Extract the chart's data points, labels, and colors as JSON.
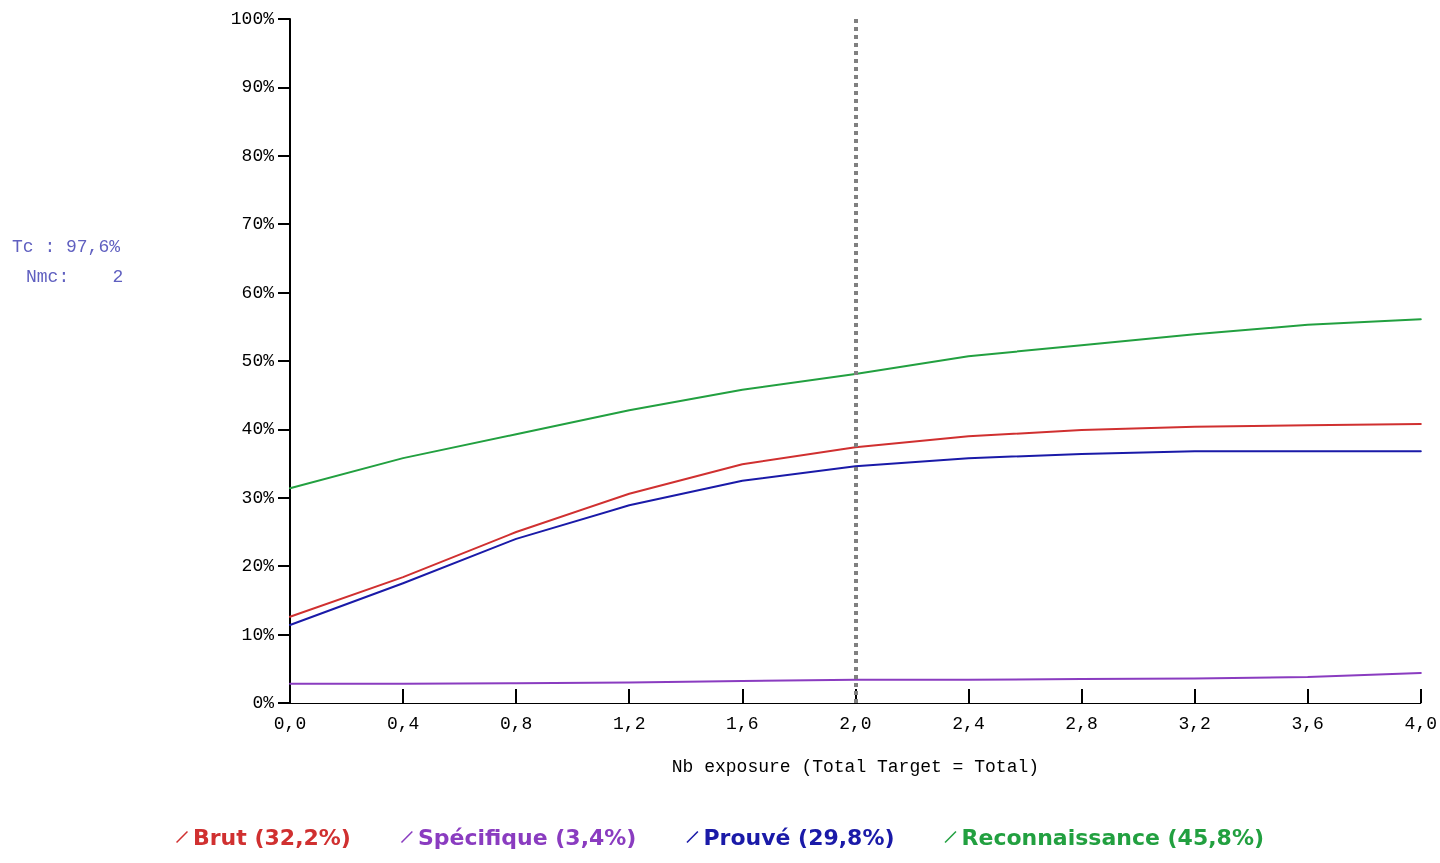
{
  "chart_data": {
    "type": "line",
    "xlabel": "Nb exposure (Total Target = Total)",
    "annotations": [
      "Tc : 97,6%",
      "Nmc:    2"
    ],
    "x": [
      0,
      0.4,
      0.8,
      1.2,
      1.6,
      2.0,
      2.4,
      2.8,
      3.2,
      3.6,
      4.0
    ],
    "series": [
      {
        "name": "Brut (32,2%)",
        "color": "#d03030",
        "values": [
          12.6,
          18.4,
          25.0,
          30.6,
          34.9,
          37.4,
          39.0,
          39.9,
          40.4,
          40.6,
          40.8
        ]
      },
      {
        "name": "Spécifique (3,4%)",
        "color": "#8a3cc0",
        "values": [
          2.8,
          2.8,
          2.9,
          3.0,
          3.2,
          3.4,
          3.4,
          3.5,
          3.6,
          3.8,
          4.4
        ]
      },
      {
        "name": "Prouvé (29,8%)",
        "color": "#1a1aa8",
        "values": [
          11.4,
          17.5,
          24.0,
          28.9,
          32.5,
          34.6,
          35.8,
          36.4,
          36.8,
          36.8,
          36.8
        ]
      },
      {
        "name": "Reconnaissance (45,8%)",
        "color": "#22a040",
        "values": [
          31.4,
          35.8,
          39.3,
          42.8,
          45.8,
          48.1,
          50.7,
          52.3,
          53.9,
          55.3,
          56.1
        ]
      }
    ],
    "xlim": [
      0,
      4
    ],
    "xticks": [
      {
        "value": 0,
        "label": "0,0"
      },
      {
        "value": 0.4,
        "label": "0,4"
      },
      {
        "value": 0.8,
        "label": "0,8"
      },
      {
        "value": 1.2,
        "label": "1,2"
      },
      {
        "value": 1.6,
        "label": "1,6"
      },
      {
        "value": 2,
        "label": "2,0"
      },
      {
        "value": 2.4,
        "label": "2,4"
      },
      {
        "value": 2.8,
        "label": "2,8"
      },
      {
        "value": 3.2,
        "label": "3,2"
      },
      {
        "value": 3.6,
        "label": "3,6"
      },
      {
        "value": 4,
        "label": "4,0"
      }
    ],
    "ylim": [
      0,
      100
    ],
    "yticks": [
      {
        "value": 0,
        "label": "0%"
      },
      {
        "value": 10,
        "label": "10%"
      },
      {
        "value": 20,
        "label": "20%"
      },
      {
        "value": 30,
        "label": "30%"
      },
      {
        "value": 40,
        "label": "40%"
      },
      {
        "value": 50,
        "label": "50%"
      },
      {
        "value": 60,
        "label": "60%"
      },
      {
        "value": 70,
        "label": "70%"
      },
      {
        "value": 80,
        "label": "80%"
      },
      {
        "value": 90,
        "label": "90%"
      },
      {
        "value": 100,
        "label": "100%"
      }
    ],
    "ref_lines": [
      {
        "axis": "x",
        "value": 2,
        "color": "#808080",
        "line_style": "dotted"
      }
    ],
    "grid": false,
    "legend": "bottom",
    "marker": "none",
    "line_style": "solid"
  }
}
